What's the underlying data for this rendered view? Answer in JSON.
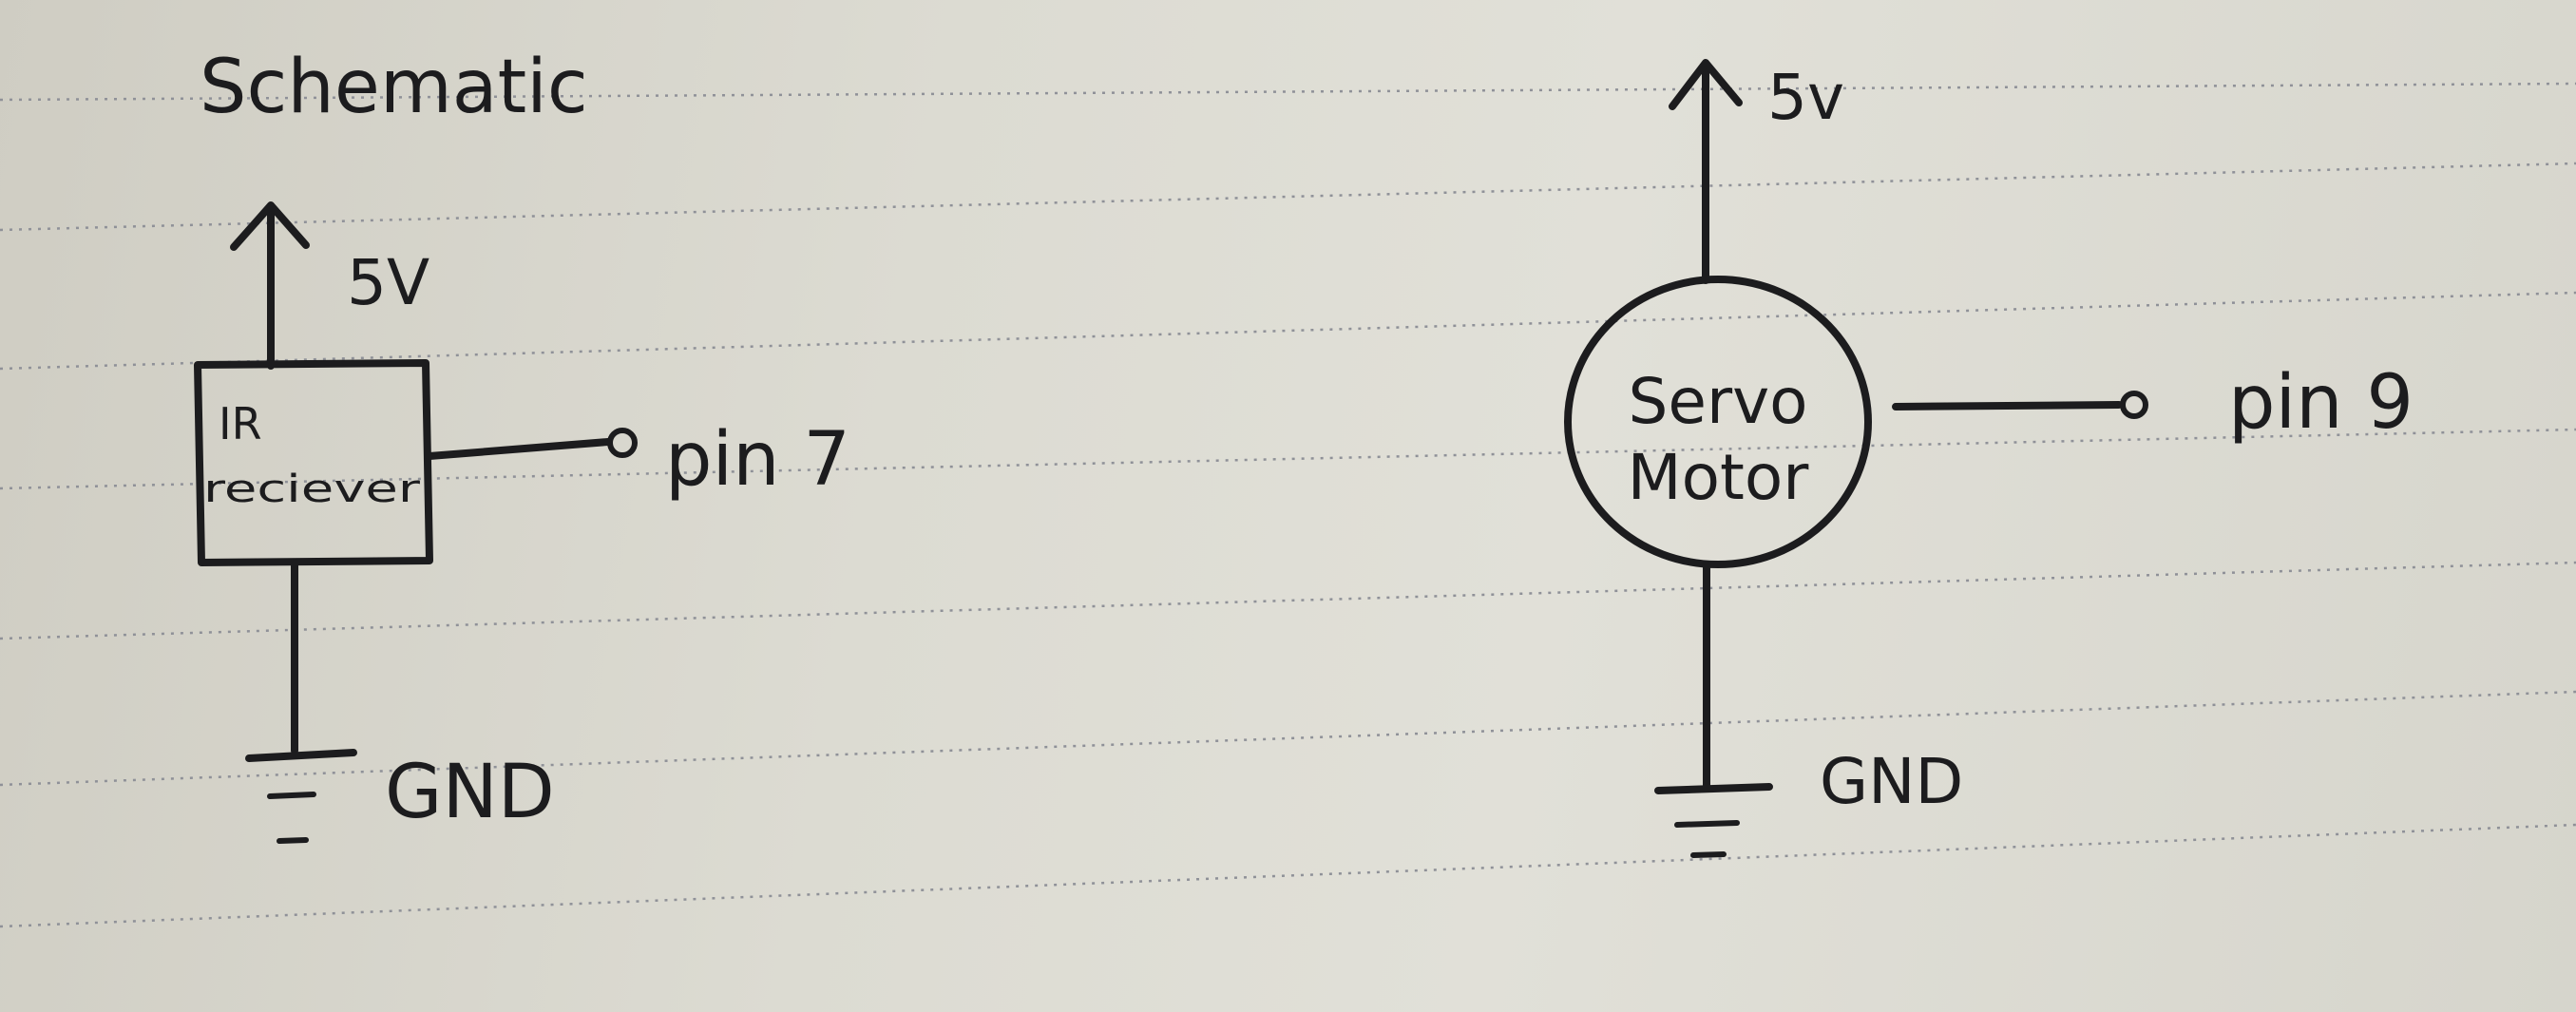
{
  "title": "Schematic",
  "circuits": {
    "ir": {
      "supply_label": "5V",
      "component_line1": "IR",
      "component_line2": "reciever",
      "pin_label": "pin 7",
      "ground_label": "GND"
    },
    "servo": {
      "supply_label": "5v",
      "component_line1": "Servo",
      "component_line2": "Motor",
      "pin_label": "pin 9",
      "ground_label": "GND"
    }
  }
}
